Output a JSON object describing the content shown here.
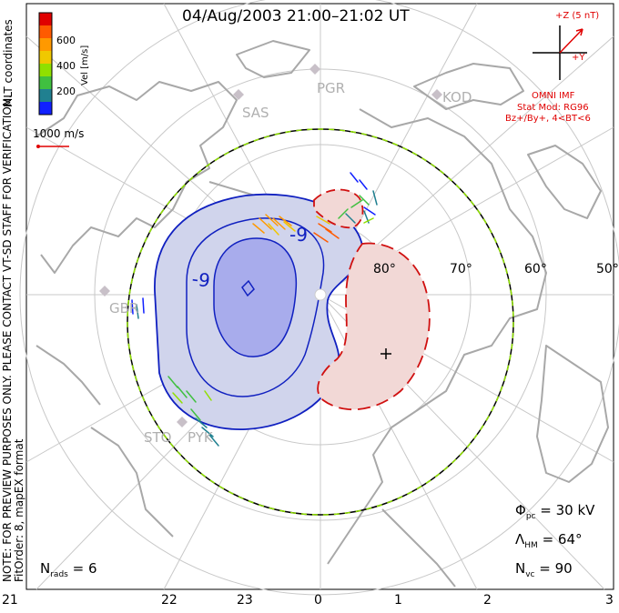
{
  "title": "04/Aug/2003 21:00–21:02 UT",
  "coordinates_label": "MLT coordinates",
  "color_scale": {
    "unit_label": "Vel [m/s]",
    "ticks": [
      "600",
      "400",
      "200"
    ],
    "colors": [
      "#e00000",
      "#ff5a00",
      "#ff9900",
      "#f0c800",
      "#90e000",
      "#40c040",
      "#208090",
      "#1020ff"
    ]
  },
  "vector_scale_label": "1000 m/s",
  "imf": {
    "z_label": "+Z (5 nT)",
    "y_label": "+Y",
    "source": "OMNI IMF",
    "stat_mod": "Stat Mod: RG96",
    "conditions": "Bz+/By+, 4<BT<6"
  },
  "stations": [
    "PGR",
    "KOD",
    "SAS",
    "GBR",
    "STO",
    "PYK"
  ],
  "latitude_labels": [
    "80°",
    "70°",
    "60°",
    "50°"
  ],
  "contour_labels": [
    "-9",
    "-9"
  ],
  "mlt_ticks": [
    "21",
    "22",
    "23",
    "0",
    "1",
    "2",
    "3"
  ],
  "stats": {
    "phi_pc": "= 30 kV",
    "lambda_hm": "= 64°",
    "n_vc": "= 90",
    "n_rads": "= 6"
  },
  "note_line1": "NOTE: FOR PREVIEW PURPOSES ONLY. PLEASE CONTACT VT-SD STAFF FOR VERIFICATION.",
  "note_line2": "FitOrder: 8, mapEX format",
  "colors": {
    "negative_cell_fill": "#d0d4ec",
    "negative_core_fill": "#a8acec",
    "negative_contour": "#1020c0",
    "positive_cell_fill": "#f2d8d6",
    "positive_contour": "#d01010",
    "map_lines": "#a8a8a8",
    "grid_lines": "#c8c8c8"
  }
}
